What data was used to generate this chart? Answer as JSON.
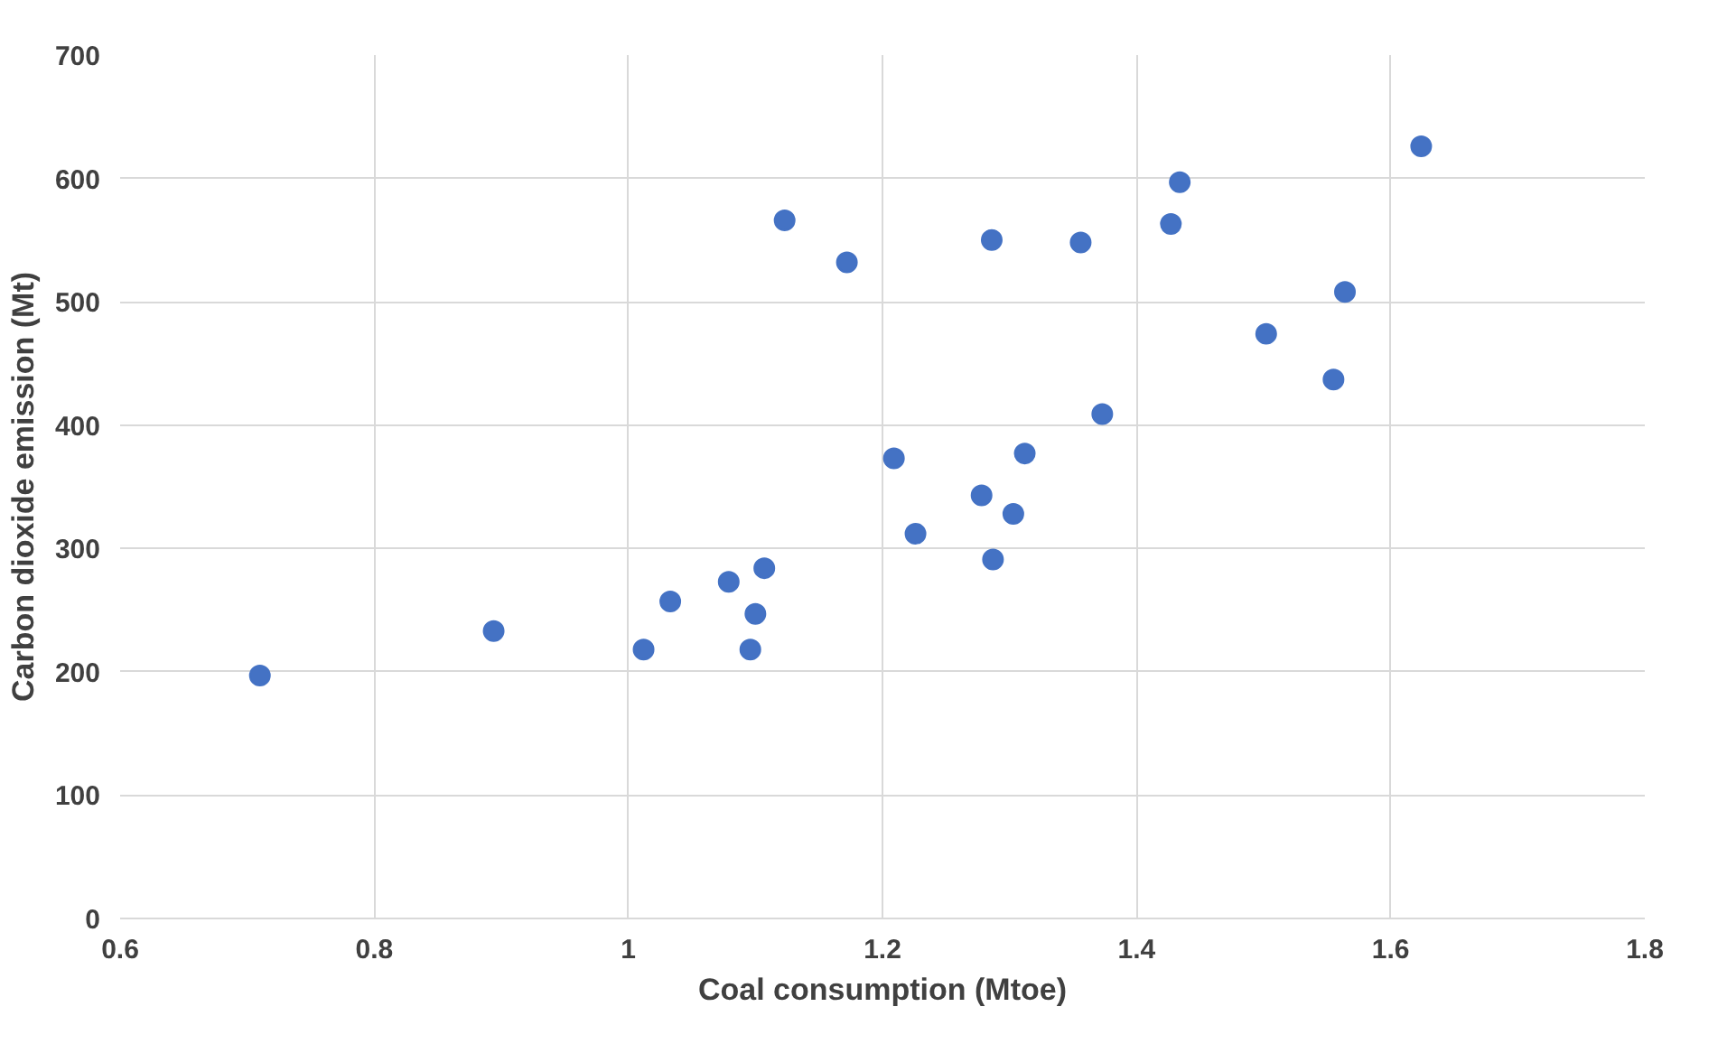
{
  "chart_data": {
    "type": "scatter",
    "xlabel": "Coal consumption (Mtoe)",
    "ylabel": "Carbon dioxide emission (Mt)",
    "x": [
      0.71,
      0.894,
      1.012,
      1.033,
      1.079,
      1.107,
      1.1,
      1.096,
      1.123,
      1.172,
      1.209,
      1.226,
      1.278,
      1.287,
      1.286,
      1.303,
      1.312,
      1.356,
      1.373,
      1.427,
      1.434,
      1.502,
      1.555,
      1.564,
      1.624
    ],
    "series": [
      {
        "color": "#4472c4",
        "values": [
          197,
          233,
          218,
          257,
          273,
          284,
          247,
          218,
          566,
          532,
          373,
          312,
          343,
          291,
          550,
          328,
          377,
          548,
          409,
          563,
          597,
          474,
          437,
          508,
          626
        ]
      }
    ],
    "xlim": [
      0.6,
      1.8
    ],
    "ylim": [
      0,
      700
    ],
    "xticks": [
      {
        "value": 0.6,
        "label": "0.6"
      },
      {
        "value": 0.8,
        "label": "0.8"
      },
      {
        "value": 1,
        "label": "1"
      },
      {
        "value": 1.2,
        "label": "1.2"
      },
      {
        "value": 1.4,
        "label": "1.4"
      },
      {
        "value": 1.6,
        "label": "1.6"
      },
      {
        "value": 1.8,
        "label": "1.8"
      }
    ],
    "yticks": [
      0,
      100,
      200,
      300,
      400,
      500,
      600,
      700
    ],
    "grid": true,
    "marker": "circle"
  }
}
